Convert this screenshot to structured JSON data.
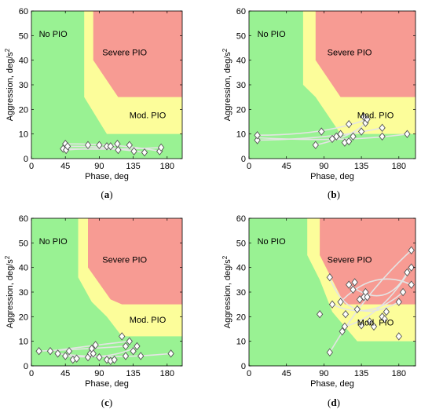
{
  "colors": {
    "no_pio": "#99f293",
    "mod_pio": "#fcfd9a",
    "severe_pio": "#f79b93",
    "trace": "#e4e4e4",
    "marker_fill": "#ffffff",
    "marker_stroke": "#555555"
  },
  "chart_data": [
    {
      "type": "scatter",
      "caption": "(a)",
      "caption_letter": "a",
      "xlabel": "Phase, deg",
      "ylabel": "Aggression, deg/s",
      "ylabel_exp": "2",
      "xlim": [
        0,
        200
      ],
      "ylim": [
        0,
        60
      ],
      "xticks": [
        0,
        45,
        90,
        135,
        180
      ],
      "yticks": [
        0,
        10,
        20,
        30,
        40,
        50,
        60
      ],
      "regions": {
        "no_pio": "No PIO",
        "severe_pio": "Severe PIO",
        "mod_pio": "Mod. PIO"
      },
      "boundaries": {
        "mod": [
          [
            70,
            60
          ],
          [
            70,
            25
          ],
          [
            100,
            10
          ],
          [
            200,
            10
          ]
        ],
        "severe": [
          [
            82,
            60
          ],
          [
            82,
            40
          ],
          [
            115,
            25
          ],
          [
            200,
            25
          ]
        ]
      },
      "points": [
        [
          42,
          4
        ],
        [
          45,
          6
        ],
        [
          46,
          3.5
        ],
        [
          48,
          5
        ],
        [
          75,
          5.5
        ],
        [
          90,
          5.5
        ],
        [
          100,
          5
        ],
        [
          105,
          5
        ],
        [
          114,
          6
        ],
        [
          115,
          3.5
        ],
        [
          130,
          5.5
        ],
        [
          136,
          3
        ],
        [
          150,
          2.5
        ],
        [
          170,
          3
        ],
        [
          172,
          4.5
        ]
      ],
      "traces": [
        [
          [
            42,
            4
          ],
          [
            110,
            3.5
          ],
          [
            172,
            4.5
          ]
        ],
        [
          [
            45,
            6
          ],
          [
            120,
            6
          ],
          [
            170,
            3
          ]
        ],
        [
          [
            46,
            3.5
          ],
          [
            100,
            5
          ],
          [
            150,
            2.5
          ]
        ],
        [
          [
            48,
            5
          ],
          [
            105,
            5
          ],
          [
            136,
            3
          ]
        ]
      ]
    },
    {
      "type": "scatter",
      "caption": "(b)",
      "caption_letter": "b",
      "xlabel": "Phase, deg",
      "ylabel": "Aggression, deg/s",
      "ylabel_exp": "2",
      "xlim": [
        0,
        200
      ],
      "ylim": [
        0,
        60
      ],
      "xticks": [
        0,
        45,
        90,
        135,
        180
      ],
      "yticks": [
        0,
        10,
        20,
        30,
        40,
        50,
        60
      ],
      "regions": {
        "no_pio": "No PIO",
        "severe_pio": "Severe PIO",
        "mod_pio": "Mod. PIO"
      },
      "boundaries": {
        "mod": [
          [
            65,
            60
          ],
          [
            65,
            30
          ],
          [
            80,
            25
          ],
          [
            110,
            10
          ],
          [
            200,
            10
          ]
        ],
        "severe": [
          [
            80,
            60
          ],
          [
            80,
            40
          ],
          [
            110,
            25
          ],
          [
            200,
            25
          ]
        ]
      },
      "points": [
        [
          10,
          7.5
        ],
        [
          10,
          9.5
        ],
        [
          80,
          5.5
        ],
        [
          87,
          11
        ],
        [
          100,
          8
        ],
        [
          105,
          9
        ],
        [
          110,
          10
        ],
        [
          115,
          6.5
        ],
        [
          120,
          7
        ],
        [
          120,
          14
        ],
        [
          125,
          9
        ],
        [
          135,
          11
        ],
        [
          138,
          17
        ],
        [
          140,
          14.5
        ],
        [
          142,
          16
        ],
        [
          160,
          12.5
        ],
        [
          160,
          9
        ],
        [
          190,
          10
        ]
      ],
      "traces": [
        [
          [
            10,
            7.5
          ],
          [
            100,
            8
          ],
          [
            160,
            12.5
          ]
        ],
        [
          [
            10,
            9.5
          ],
          [
            90,
            9.5
          ],
          [
            142,
            16
          ]
        ],
        [
          [
            10,
            8.5
          ],
          [
            115,
            6.5
          ],
          [
            190,
            10
          ]
        ],
        [
          [
            80,
            5.5
          ],
          [
            125,
            9
          ],
          [
            140,
            14.5
          ]
        ]
      ]
    },
    {
      "type": "scatter",
      "caption": "(c)",
      "caption_letter": "c",
      "xlabel": "Phase, deg",
      "ylabel": "Aggression, deg/s",
      "ylabel_exp": "2",
      "xlim": [
        0,
        200
      ],
      "ylim": [
        0,
        60
      ],
      "xticks": [
        0,
        45,
        90,
        135,
        180
      ],
      "yticks": [
        0,
        10,
        20,
        30,
        40,
        50,
        60
      ],
      "regions": {
        "no_pio": "No PIO",
        "severe_pio": "Severe PIO",
        "mod_pio": "Mod. PIO"
      },
      "boundaries": {
        "mod": [
          [
            62,
            60
          ],
          [
            62,
            36
          ],
          [
            80,
            26
          ],
          [
            100,
            20
          ],
          [
            120,
            12
          ],
          [
            200,
            12
          ]
        ],
        "severe": [
          [
            75,
            60
          ],
          [
            75,
            40
          ],
          [
            105,
            27
          ],
          [
            120,
            25
          ],
          [
            200,
            25
          ]
        ]
      },
      "points": [
        [
          10,
          6
        ],
        [
          25,
          6
        ],
        [
          35,
          5
        ],
        [
          45,
          4
        ],
        [
          50,
          6
        ],
        [
          55,
          2.5
        ],
        [
          60,
          3
        ],
        [
          75,
          3.5
        ],
        [
          78,
          5
        ],
        [
          80,
          7
        ],
        [
          82,
          5
        ],
        [
          85,
          8.5
        ],
        [
          90,
          3.5
        ],
        [
          100,
          2.5
        ],
        [
          105,
          2
        ],
        [
          110,
          2.5
        ],
        [
          120,
          12
        ],
        [
          125,
          8
        ],
        [
          125,
          4
        ],
        [
          130,
          10
        ],
        [
          135,
          6
        ],
        [
          140,
          8
        ],
        [
          145,
          4
        ],
        [
          185,
          5
        ]
      ],
      "traces": [
        [
          [
            10,
            6
          ],
          [
            80,
            7
          ],
          [
            125,
            8
          ]
        ],
        [
          [
            25,
            6
          ],
          [
            85,
            8.5
          ],
          [
            130,
            10
          ]
        ],
        [
          [
            35,
            5
          ],
          [
            100,
            2.5
          ],
          [
            185,
            5
          ]
        ],
        [
          [
            45,
            4
          ],
          [
            110,
            2.5
          ],
          [
            140,
            8
          ]
        ]
      ]
    },
    {
      "type": "scatter",
      "caption": "(d)",
      "caption_letter": "d",
      "xlabel": "Phase, deg",
      "ylabel": "Aggression, deg/s",
      "ylabel_exp": "2",
      "xlim": [
        0,
        200
      ],
      "ylim": [
        0,
        60
      ],
      "xticks": [
        0,
        45,
        90,
        135,
        180
      ],
      "yticks": [
        0,
        10,
        20,
        30,
        40,
        50,
        60
      ],
      "regions": {
        "no_pio": "No PIO",
        "severe_pio": "Severe PIO",
        "mod_pio": "Mod. PIO"
      },
      "boundaries": {
        "mod": [
          [
            70,
            60
          ],
          [
            70,
            45
          ],
          [
            85,
            35
          ],
          [
            100,
            22
          ],
          [
            130,
            10
          ],
          [
            200,
            10
          ]
        ],
        "severe": [
          [
            85,
            60
          ],
          [
            85,
            45
          ],
          [
            100,
            35
          ],
          [
            115,
            25
          ],
          [
            200,
            25
          ]
        ]
      },
      "points": [
        [
          85,
          21
        ],
        [
          97,
          36
        ],
        [
          97,
          5.5
        ],
        [
          100,
          25
        ],
        [
          110,
          26
        ],
        [
          112,
          14
        ],
        [
          115,
          16
        ],
        [
          116,
          21
        ],
        [
          120,
          33
        ],
        [
          125,
          31
        ],
        [
          127,
          34
        ],
        [
          130,
          23
        ],
        [
          133,
          27
        ],
        [
          135,
          16.5
        ],
        [
          138,
          28
        ],
        [
          140,
          30
        ],
        [
          142,
          28
        ],
        [
          145,
          18
        ],
        [
          150,
          16
        ],
        [
          160,
          20
        ],
        [
          163,
          19
        ],
        [
          165,
          22
        ],
        [
          180,
          12
        ],
        [
          180,
          26
        ],
        [
          185,
          30
        ],
        [
          190,
          38
        ],
        [
          195,
          33
        ],
        [
          195,
          40
        ],
        [
          195,
          47
        ]
      ],
      "traces": [
        [
          [
            97,
            5.5
          ],
          [
            140,
            30
          ],
          [
            195,
            47
          ]
        ],
        [
          [
            97,
            36
          ],
          [
            120,
            15
          ],
          [
            180,
            26
          ]
        ],
        [
          [
            110,
            26
          ],
          [
            150,
            40
          ],
          [
            195,
            33
          ]
        ],
        [
          [
            115,
            16
          ],
          [
            160,
            20
          ],
          [
            195,
            40
          ]
        ],
        [
          [
            120,
            33
          ],
          [
            165,
            22
          ],
          [
            190,
            38
          ]
        ],
        [
          [
            100,
            25
          ],
          [
            145,
            18
          ],
          [
            185,
            30
          ]
        ]
      ]
    }
  ]
}
